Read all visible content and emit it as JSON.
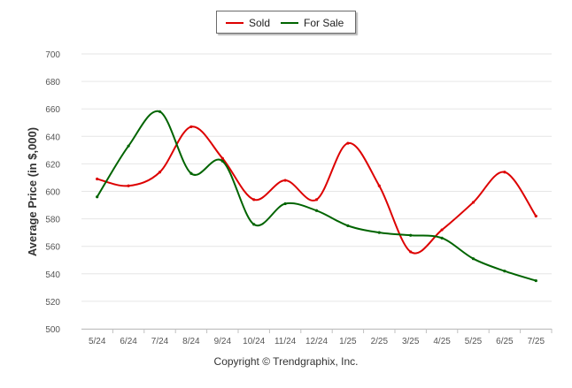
{
  "legend": {
    "sold_label": "Sold",
    "for_sale_label": "For Sale"
  },
  "footer": "Copyright © Trendgraphix, Inc.",
  "colors": {
    "sold": "#dd0000",
    "for_sale": "#006400",
    "grid": "#e6e6e6",
    "axis_text": "#555555"
  },
  "chart_data": {
    "type": "line",
    "title": "",
    "xlabel": "",
    "ylabel": "Average Price (in $,000)",
    "categories": [
      "5/24",
      "6/24",
      "7/24",
      "8/24",
      "9/24",
      "10/24",
      "11/24",
      "12/24",
      "1/25",
      "2/25",
      "3/25",
      "4/25",
      "5/25",
      "6/25",
      "7/25"
    ],
    "ylim": [
      500,
      700
    ],
    "yticks": [
      500,
      520,
      540,
      560,
      580,
      600,
      620,
      640,
      660,
      680,
      700
    ],
    "grid": true,
    "legend_position": "top-center",
    "series": [
      {
        "name": "Sold",
        "color": "#dd0000",
        "values": [
          609,
          604,
          614,
          647,
          624,
          594,
          608,
          594,
          635,
          604,
          556,
          572,
          592,
          614,
          582
        ]
      },
      {
        "name": "For Sale",
        "color": "#006400",
        "values": [
          596,
          633,
          658,
          613,
          622,
          576,
          591,
          586,
          575,
          570,
          568,
          566,
          551,
          542,
          535
        ]
      }
    ]
  }
}
